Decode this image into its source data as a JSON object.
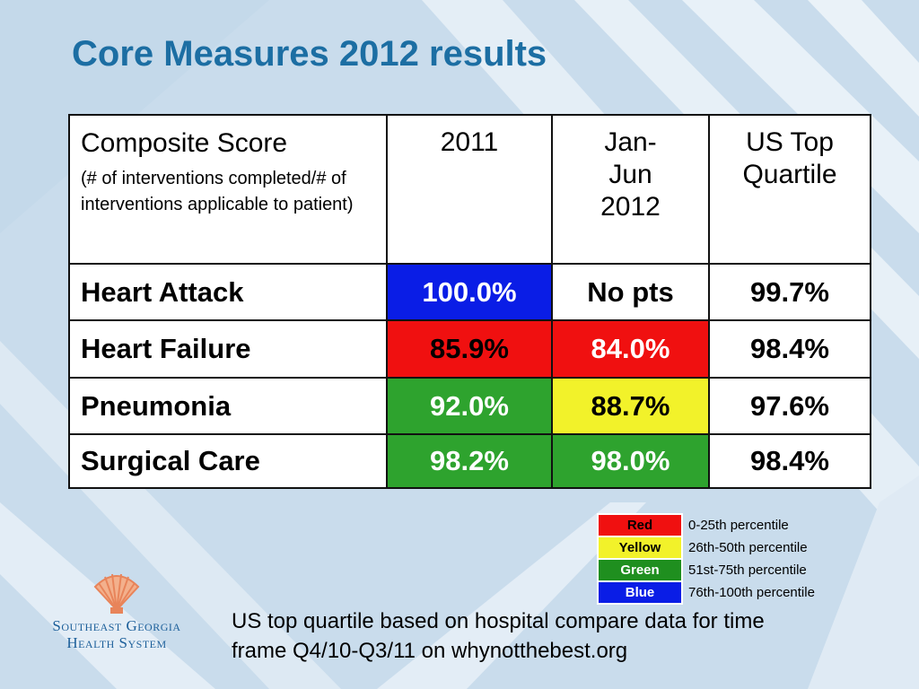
{
  "slide": {
    "title": "Core Measures 2012 results",
    "note_line1": "US top quartile based on hospital compare data for time",
    "note_line2": "frame Q4/10-Q3/11 on whynotthebest.org"
  },
  "logo": {
    "name_line1": "Southeast Georgia",
    "name_line2": "Health System",
    "icon": "shell-icon"
  },
  "table": {
    "header": {
      "composite": "Composite Score",
      "composite_note": "(# of interventions completed/# of interventions applicable to patient)",
      "col_2011": "2011",
      "col_2012_l1": "Jan-",
      "col_2012_l2": "Jun",
      "col_2012_l3": "2012",
      "col_us_l1": "US Top",
      "col_us_l2": "Quartile"
    },
    "rows": [
      {
        "label": "Heart Attack",
        "v2011": "100.0%",
        "v2012": "No pts",
        "us": "99.7%"
      },
      {
        "label": "Heart Failure",
        "v2011": "85.9%",
        "v2012": "84.0%",
        "us": "98.4%"
      },
      {
        "label": "Pneumonia",
        "v2011": "92.0%",
        "v2012": "88.7%",
        "us": "97.6%"
      },
      {
        "label": "Surgical Care",
        "v2011": "98.2%",
        "v2012": "98.0%",
        "us": "98.4%"
      }
    ]
  },
  "legend": [
    {
      "label": "Red",
      "range": "0-25th percentile",
      "color": "#f01010"
    },
    {
      "label": "Yellow",
      "range": "26th-50th percentile",
      "color": "#f2f22a"
    },
    {
      "label": "Green",
      "range": "51st-75th percentile",
      "color": "#2ea32e"
    },
    {
      "label": "Blue",
      "range": "76th-100th percentile",
      "color": "#0a1de6"
    }
  ],
  "colors": {
    "title": "#1c6ea3",
    "red": "#f01010",
    "yellow": "#f2f22a",
    "green": "#2ea32e",
    "blue": "#0a1de6"
  }
}
